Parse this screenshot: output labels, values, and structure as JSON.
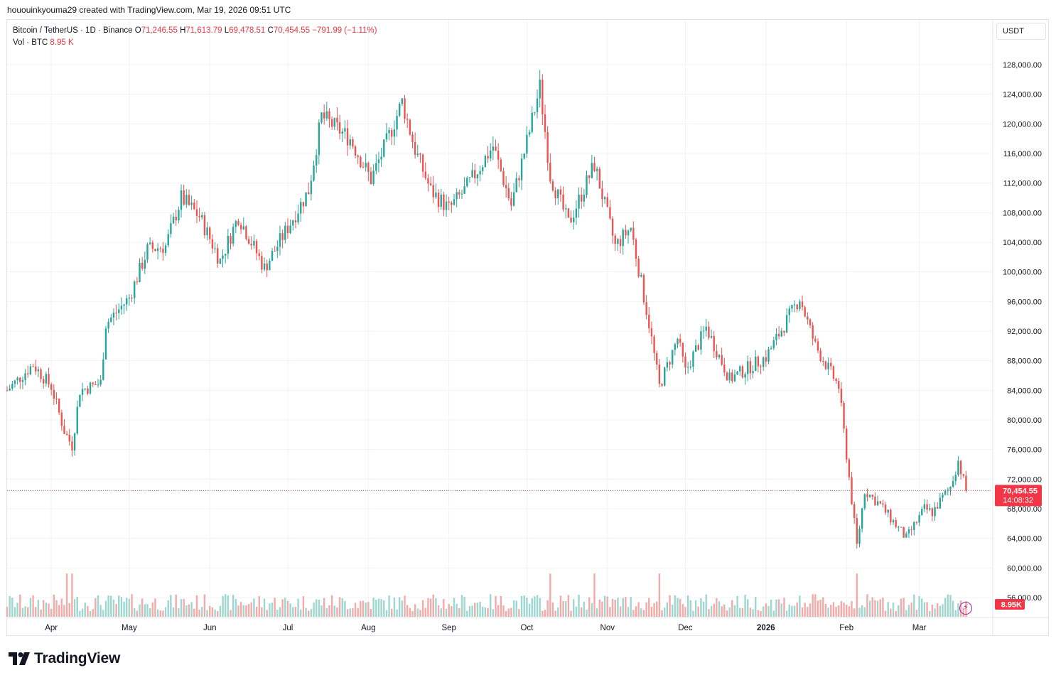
{
  "header": {
    "author_line": "hououinkyouma29 created with TradingView.com, Mar 19, 2026 09:51 UTC"
  },
  "legend": {
    "symbol": "Bitcoin / TetherUS · 1D · Binance",
    "open_label": "O",
    "open": "71,246.55",
    "high_label": "H",
    "high": "71,613.79",
    "low_label": "L",
    "low": "69,478.51",
    "close_label": "C",
    "close": "70,454.55",
    "change": "−791.99 (−1.11%)",
    "volume_label": "Vol · BTC",
    "volume": "8.95 K"
  },
  "currency_button": "USDT",
  "price_badge": {
    "price": "70,454.55",
    "countdown": "14:08:32"
  },
  "volume_badge": "8.95K",
  "footer": {
    "brand": "TradingView"
  },
  "colors": {
    "up": "#26a69a",
    "down": "#ef5350",
    "up_vol": "#9ed7d0",
    "down_vol": "#f4aaa8",
    "grid": "#f0f3fa",
    "axis_text": "#131722"
  },
  "chart_data": {
    "type": "candlestick",
    "title": "Bitcoin / TetherUS · 1D · Binance",
    "ylim": [
      52000,
      132000
    ],
    "y_ticks": [
      56000,
      60000,
      64000,
      68000,
      72000,
      76000,
      80000,
      84000,
      88000,
      92000,
      96000,
      100000,
      104000,
      108000,
      112000,
      116000,
      120000,
      124000,
      128000
    ],
    "y_tick_labels": [
      "56,000.00",
      "60,000.00",
      "64,000.00",
      "68,000.00",
      "72,000.00",
      "76,000.00",
      "80,000.00",
      "84,000.00",
      "88,000.00",
      "92,000.00",
      "96,000.00",
      "100,000.00",
      "104,000.00",
      "108,000.00",
      "112,000.00",
      "116,000.00",
      "120,000.00",
      "124,000.00",
      "128,000.00"
    ],
    "x_range": [
      "2025-03-15",
      "2026-03-29"
    ],
    "x_ticks": [
      {
        "label": "Apr",
        "date": "2025-04-01"
      },
      {
        "label": "May",
        "date": "2025-05-01"
      },
      {
        "label": "Jun",
        "date": "2025-06-01"
      },
      {
        "label": "Jul",
        "date": "2025-07-01"
      },
      {
        "label": "Aug",
        "date": "2025-08-01"
      },
      {
        "label": "Sep",
        "date": "2025-09-01"
      },
      {
        "label": "Oct",
        "date": "2025-10-01"
      },
      {
        "label": "Nov",
        "date": "2025-11-01"
      },
      {
        "label": "Dec",
        "date": "2025-12-01"
      },
      {
        "label": "2026",
        "date": "2026-01-01",
        "bold": true
      },
      {
        "label": "Feb",
        "date": "2026-02-01"
      },
      {
        "label": "Mar",
        "date": "2026-03-01"
      }
    ],
    "last_price": 70454.55,
    "closes": [
      {
        "date": "2025-03-15",
        "close": 84000
      },
      {
        "date": "2025-03-25",
        "close": 87500
      },
      {
        "date": "2025-04-01",
        "close": 84500
      },
      {
        "date": "2025-04-06",
        "close": 78500
      },
      {
        "date": "2025-04-09",
        "close": 76500
      },
      {
        "date": "2025-04-12",
        "close": 84000
      },
      {
        "date": "2025-04-20",
        "close": 85000
      },
      {
        "date": "2025-04-22",
        "close": 93000
      },
      {
        "date": "2025-05-01",
        "close": 96500
      },
      {
        "date": "2025-05-08",
        "close": 103000
      },
      {
        "date": "2025-05-15",
        "close": 103500
      },
      {
        "date": "2025-05-21",
        "close": 110000
      },
      {
        "date": "2025-05-28",
        "close": 107500
      },
      {
        "date": "2025-06-05",
        "close": 101500
      },
      {
        "date": "2025-06-12",
        "close": 107500
      },
      {
        "date": "2025-06-22",
        "close": 100500
      },
      {
        "date": "2025-07-01",
        "close": 106000
      },
      {
        "date": "2025-07-09",
        "close": 111000
      },
      {
        "date": "2025-07-14",
        "close": 121000
      },
      {
        "date": "2025-07-25",
        "close": 118000
      },
      {
        "date": "2025-08-02",
        "close": 112500
      },
      {
        "date": "2025-08-08",
        "close": 117500
      },
      {
        "date": "2025-08-14",
        "close": 123000
      },
      {
        "date": "2025-08-19",
        "close": 116500
      },
      {
        "date": "2025-08-25",
        "close": 111000
      },
      {
        "date": "2025-09-01",
        "close": 108500
      },
      {
        "date": "2025-09-07",
        "close": 111000
      },
      {
        "date": "2025-09-18",
        "close": 117000
      },
      {
        "date": "2025-09-25",
        "close": 109000
      },
      {
        "date": "2025-10-02",
        "close": 119000
      },
      {
        "date": "2025-10-06",
        "close": 125000
      },
      {
        "date": "2025-10-10",
        "close": 113000
      },
      {
        "date": "2025-10-17",
        "close": 106500
      },
      {
        "date": "2025-10-27",
        "close": 114500
      },
      {
        "date": "2025-11-04",
        "close": 103500
      },
      {
        "date": "2025-11-10",
        "close": 106000
      },
      {
        "date": "2025-11-17",
        "close": 93000
      },
      {
        "date": "2025-11-21",
        "close": 84500
      },
      {
        "date": "2025-11-28",
        "close": 91000
      },
      {
        "date": "2025-12-01",
        "close": 86500
      },
      {
        "date": "2025-12-09",
        "close": 92500
      },
      {
        "date": "2025-12-18",
        "close": 85500
      },
      {
        "date": "2026-01-01",
        "close": 88500
      },
      {
        "date": "2026-01-14",
        "close": 96500
      },
      {
        "date": "2026-01-20",
        "close": 90000
      },
      {
        "date": "2026-01-29",
        "close": 84500
      },
      {
        "date": "2026-02-05",
        "close": 63000
      },
      {
        "date": "2026-02-08",
        "close": 70500
      },
      {
        "date": "2026-02-14",
        "close": 68500
      },
      {
        "date": "2026-02-24",
        "close": 64000
      },
      {
        "date": "2026-03-03",
        "close": 68000
      },
      {
        "date": "2026-03-06",
        "close": 67500
      },
      {
        "date": "2026-03-13",
        "close": 71000
      },
      {
        "date": "2026-03-16",
        "close": 74500
      },
      {
        "date": "2026-03-19",
        "close": 70454.55
      }
    ]
  }
}
